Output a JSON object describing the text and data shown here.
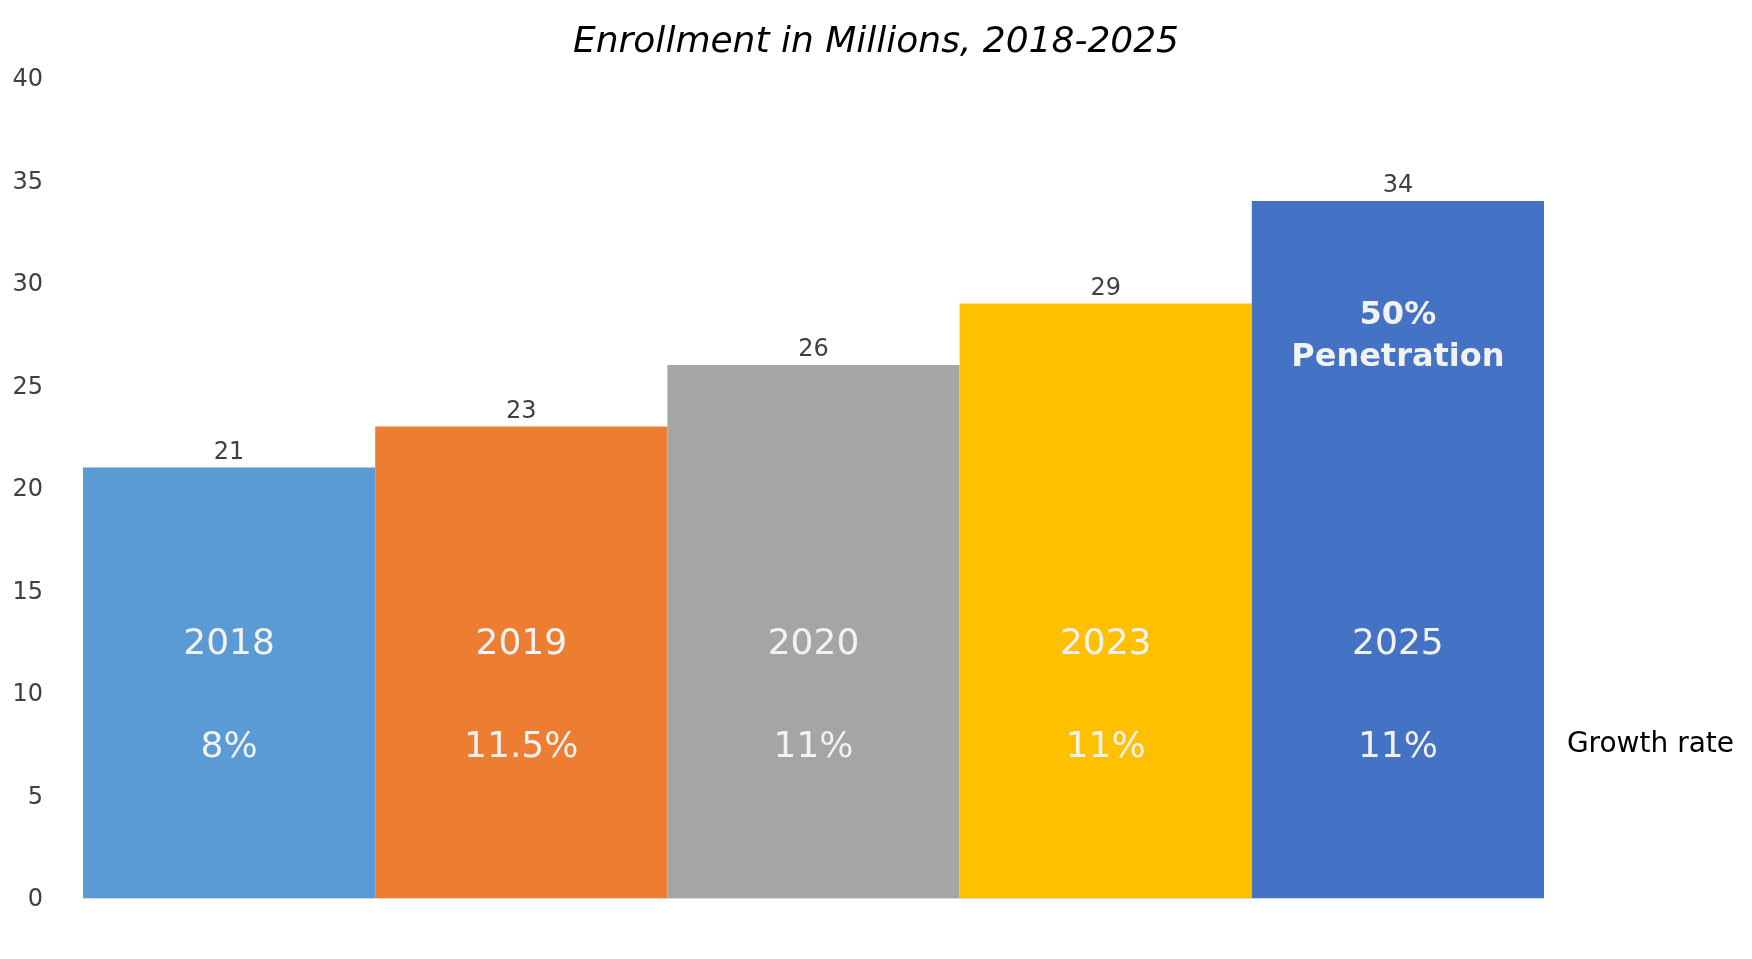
{
  "chart_data": {
    "type": "bar",
    "title": "Enrollment in Millions, 2018-2025",
    "categories": [
      "2018",
      "2019",
      "2020",
      "2023",
      "2025"
    ],
    "values": [
      21,
      23,
      26,
      29,
      34
    ],
    "colors": [
      "#5b9bd5",
      "#ed7d31",
      "#a5a5a5",
      "#ffc000",
      "#4472c4"
    ],
    "ylim": [
      0,
      40
    ],
    "yticks": [
      0,
      5,
      10,
      15,
      20,
      25,
      30,
      35,
      40
    ],
    "grid": false,
    "data_labels": true,
    "annotations": [
      "8%",
      "11.5%",
      "11%",
      "11%",
      "11%",
      "50% Penetration",
      "Growth rate"
    ]
  }
}
